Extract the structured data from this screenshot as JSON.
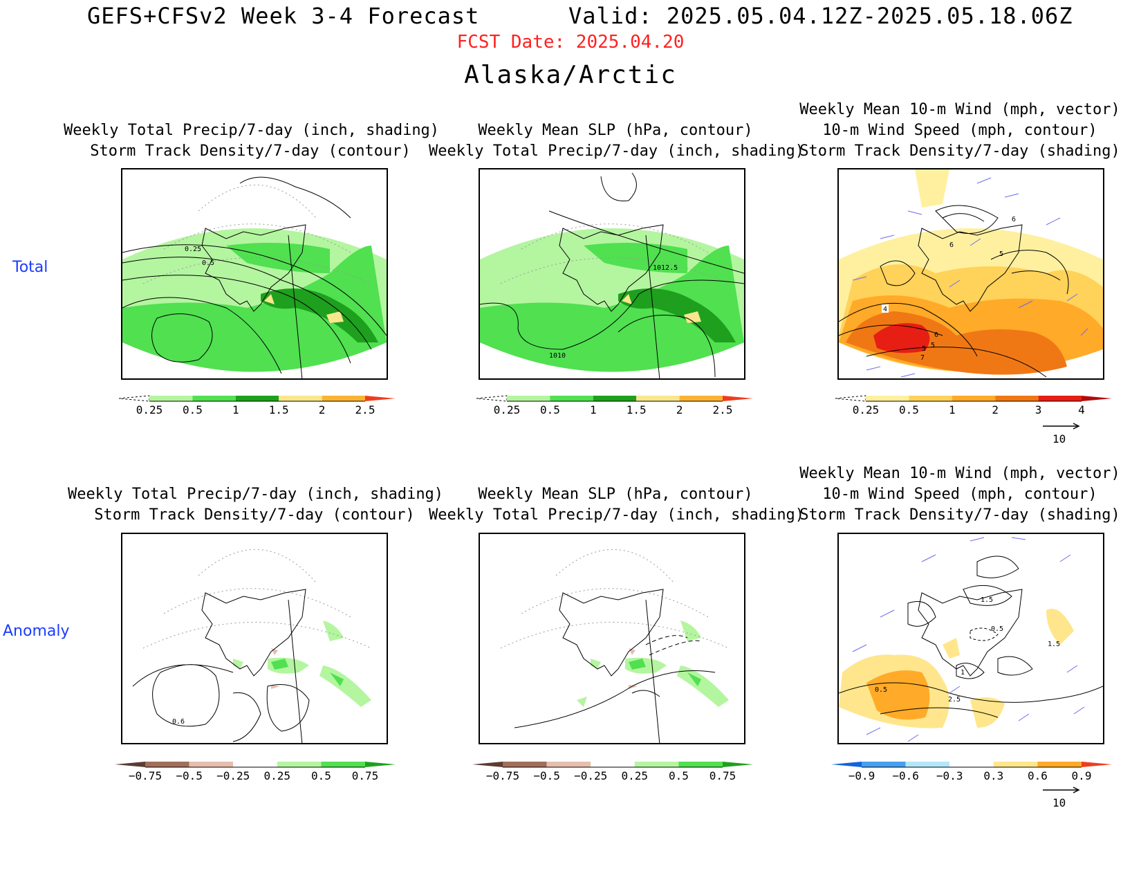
{
  "header": {
    "title": "GEFS+CFSv2 Week 3-4 Forecast",
    "valid": "Valid: 2025.05.04.12Z-2025.05.18.06Z",
    "fcst_date": "FCST Date: 2025.04.20",
    "region": "Alaska/Arctic"
  },
  "rows": [
    {
      "label": "Total"
    },
    {
      "label": "Anomaly"
    }
  ],
  "panels": {
    "total_precip": {
      "line1": "Weekly Total Precip/7-day (inch, shading)",
      "line2": "Storm Track Density/7-day (contour)",
      "contour_labels": [
        "0.25",
        "0.5"
      ]
    },
    "total_slp": {
      "line1": "Weekly Mean SLP (hPa, contour)",
      "line2": "Weekly Total Precip/7-day (inch, shading)",
      "contour_labels": [
        "1012.5",
        "1010"
      ]
    },
    "total_wind": {
      "line0": "Weekly Mean 10-m Wind (mph, vector)",
      "line1": "10-m Wind Speed (mph, contour)",
      "line2": "Storm Track Density/7-day (shading)",
      "contour_labels": [
        "6",
        "5",
        "4",
        "7",
        "5",
        "6",
        "5",
        "6"
      ]
    },
    "anom_precip": {
      "line1": "Weekly Total Precip/7-day (inch, shading)",
      "line2": "Storm Track Density/7-day (contour)",
      "contour_labels": [
        "0.6"
      ]
    },
    "anom_slp": {
      "line1": "Weekly Mean SLP (hPa, contour)",
      "line2": "Weekly Total Precip/7-day (inch, shading)"
    },
    "anom_wind": {
      "line0": "Weekly Mean 10-m Wind (mph, vector)",
      "line1": "10-m Wind Speed (mph, contour)",
      "line2": "Storm Track Density/7-day (shading)",
      "contour_labels": [
        "1.5",
        "0.5",
        "1.5",
        "0.5",
        "2.5",
        "1"
      ]
    }
  },
  "colorbars": {
    "precip_total": {
      "ticks": [
        "0.25",
        "0.5",
        "1",
        "1.5",
        "2",
        "2.5"
      ],
      "colors": [
        "#ffffff",
        "#b4f5a0",
        "#50e050",
        "#1ea01e",
        "#fae68c",
        "#fab432",
        "#f03c1e"
      ]
    },
    "track_total": {
      "ticks": [
        "0.25",
        "0.5",
        "1",
        "2",
        "3",
        "4"
      ],
      "colors": [
        "#ffffff",
        "#fff0a0",
        "#ffd25a",
        "#ffaa28",
        "#f07814",
        "#e61e14",
        "#b40a0a"
      ]
    },
    "precip_anom": {
      "ticks": [
        "-0.75",
        "-0.5",
        "-0.25",
        "0.25",
        "0.5",
        "0.75"
      ],
      "colors": [
        "#5a3c32",
        "#a06e5a",
        "#e6beaf",
        "#ffffff",
        "#b4f5a0",
        "#50e050",
        "#1ea01e"
      ]
    },
    "track_anom": {
      "ticks": [
        "-0.9",
        "-0.6",
        "-0.3",
        "0.3",
        "0.6",
        "0.9"
      ],
      "colors": [
        "#1464dc",
        "#46a0f0",
        "#b4e6fa",
        "#ffffff",
        "#ffe68c",
        "#ffaa28",
        "#f03c1e"
      ]
    }
  },
  "vector_reference": "10",
  "colors": {
    "fcst_date": "#ff2020",
    "row_label": "#1a3cff",
    "vector": "#6a6af0"
  }
}
